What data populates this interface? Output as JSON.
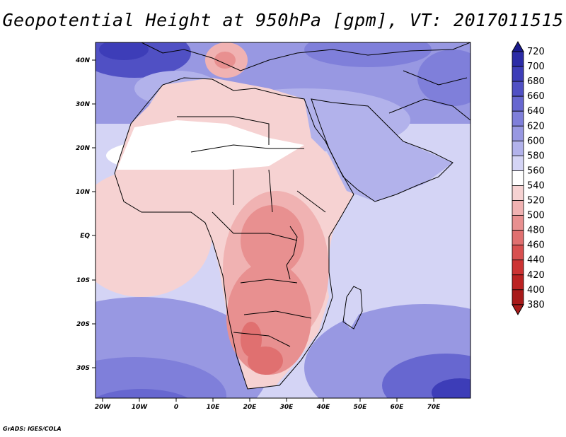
{
  "title": "Geopotential Height at 950hPa [gpm], VT: 2017011515",
  "credit": "GrADS: IGES/COLA",
  "x_ticks": [
    "20W",
    "10W",
    "0",
    "10E",
    "20E",
    "30E",
    "40E",
    "50E",
    "60E",
    "70E"
  ],
  "y_ticks": [
    "40N",
    "30N",
    "20N",
    "10N",
    "EQ",
    "10S",
    "20S",
    "30S"
  ],
  "colorbar": {
    "levels": [
      "720",
      "700",
      "680",
      "660",
      "640",
      "620",
      "600",
      "580",
      "560",
      "540",
      "520",
      "500",
      "480",
      "460",
      "440",
      "420",
      "400",
      "380"
    ],
    "colors": [
      "#1a1a8c",
      "#2b2ba6",
      "#3d3db8",
      "#5050c4",
      "#6767d0",
      "#7f7fda",
      "#9898e2",
      "#b2b2eb",
      "#d4d4f5",
      "#ffffff",
      "#f6d2d2",
      "#f0b2b2",
      "#e89090",
      "#e07070",
      "#d85050",
      "#cc3333",
      "#bb2222",
      "#a81a1a"
    ]
  },
  "colors": {
    "ocean_south_deep": "#4a4ac0",
    "ocean_south_mid": "#7f7fda",
    "ocean_equatorial": "#d4d4f5",
    "land_low": "#e89090",
    "coast": "#000000"
  }
}
